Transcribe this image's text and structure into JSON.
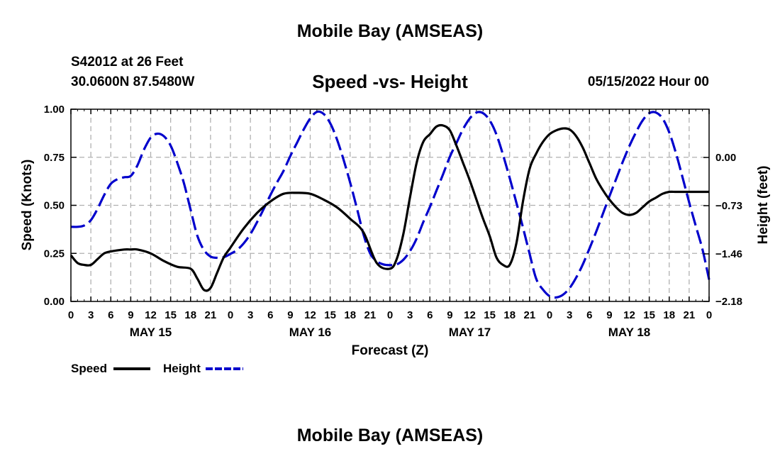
{
  "header": {
    "title": "Mobile Bay (AMSEAS)",
    "station": "S42012 at 26 Feet",
    "coords": "30.0600N  87.5480W",
    "forecast_start": "05/15/2022 Hour 00"
  },
  "footer": {
    "title": "Mobile Bay (AMSEAS)"
  },
  "legend": {
    "speed_label": "Speed",
    "height_label": "Height"
  },
  "colors": {
    "speed": "#000000",
    "height": "#0000cc",
    "grid": "#b0b0b0"
  },
  "chart_data": {
    "type": "line",
    "title": "Speed -vs- Height",
    "xlabel": "Forecast (Z)",
    "ylabel_left": "Speed (Knots)",
    "ylabel_right": "Height (feet)",
    "x_unit": "hours since 05/15/2022 00Z",
    "xlim": [
      0,
      96
    ],
    "ylim_left": [
      0,
      1
    ],
    "ylim_right": [
      -2.18,
      0.73
    ],
    "left_ticks": [
      {
        "value": 0,
        "label": "0.00"
      },
      {
        "value": 0.25,
        "label": "0.25"
      },
      {
        "value": 0.5,
        "label": "0.50"
      },
      {
        "value": 0.75,
        "label": "0.75"
      },
      {
        "value": 1,
        "label": "1.00"
      }
    ],
    "right_ticks": [
      {
        "value": -2.18,
        "label": "−2.18"
      },
      {
        "value": -1.46,
        "label": "−1.46"
      },
      {
        "value": -0.73,
        "label": "−0.73"
      },
      {
        "value": 0.0,
        "label": "0.00"
      }
    ],
    "hour_tick_labels": [
      "0",
      "3",
      "6",
      "9",
      "12",
      "15",
      "18",
      "21",
      "0",
      "3",
      "6",
      "9",
      "12",
      "15",
      "18",
      "21",
      "0",
      "3",
      "6",
      "9",
      "12",
      "15",
      "18",
      "21",
      "0",
      "3",
      "6",
      "9",
      "12",
      "15",
      "18",
      "21",
      "0"
    ],
    "day_labels": [
      {
        "hour": 12,
        "label": "MAY 15"
      },
      {
        "hour": 36,
        "label": "MAY 16"
      },
      {
        "hour": 60,
        "label": "MAY 17"
      },
      {
        "hour": 84,
        "label": "MAY 18"
      }
    ],
    "series": [
      {
        "name": "Speed",
        "axis": "left",
        "style": "solid",
        "x": [
          0,
          1,
          2,
          3,
          4,
          5,
          6,
          8,
          9,
          10,
          12,
          14,
          16,
          18,
          19,
          20,
          21,
          22,
          23,
          24,
          26,
          28,
          30,
          32,
          34,
          36,
          38,
          40,
          42,
          44,
          46,
          48,
          49,
          50,
          51,
          52,
          53,
          54,
          55,
          56,
          57,
          58,
          59,
          60,
          61,
          62,
          63,
          64,
          65,
          66,
          67,
          68,
          69,
          70,
          71,
          72,
          73,
          74,
          75,
          76,
          77,
          78,
          79,
          80,
          81,
          82,
          83,
          84,
          85,
          86,
          87,
          88,
          89,
          90,
          91,
          92,
          93,
          94,
          95,
          96
        ],
        "values": [
          0.24,
          0.2,
          0.19,
          0.19,
          0.22,
          0.25,
          0.26,
          0.27,
          0.27,
          0.27,
          0.25,
          0.21,
          0.18,
          0.17,
          0.12,
          0.06,
          0.07,
          0.15,
          0.23,
          0.28,
          0.38,
          0.46,
          0.52,
          0.56,
          0.565,
          0.56,
          0.53,
          0.49,
          0.43,
          0.36,
          0.2,
          0.17,
          0.22,
          0.35,
          0.54,
          0.72,
          0.83,
          0.87,
          0.91,
          0.915,
          0.89,
          0.81,
          0.72,
          0.63,
          0.53,
          0.43,
          0.34,
          0.23,
          0.19,
          0.19,
          0.3,
          0.52,
          0.69,
          0.77,
          0.83,
          0.87,
          0.89,
          0.9,
          0.895,
          0.86,
          0.8,
          0.72,
          0.64,
          0.58,
          0.53,
          0.49,
          0.46,
          0.45,
          0.46,
          0.49,
          0.52,
          0.54,
          0.56,
          0.57,
          0.57,
          0.57,
          0.57,
          0.57,
          0.57,
          0.57
        ]
      },
      {
        "name": "Height",
        "axis": "right",
        "style": "dashed",
        "x": [
          0,
          1,
          2,
          3,
          4,
          5,
          6,
          7,
          8,
          9,
          10,
          11,
          12,
          13,
          14,
          15,
          16,
          17,
          18,
          19,
          20,
          21,
          22,
          23,
          24,
          25,
          26,
          27,
          28,
          29,
          30,
          31,
          32,
          33,
          34,
          35,
          36,
          37,
          38,
          39,
          40,
          41,
          42,
          43,
          44,
          45,
          46,
          47,
          48,
          49,
          50,
          51,
          52,
          53,
          54,
          55,
          56,
          57,
          58,
          59,
          60,
          61,
          62,
          63,
          64,
          65,
          66,
          67,
          68,
          69,
          70,
          71,
          72,
          73,
          74,
          75,
          76,
          77,
          78,
          79,
          80,
          81,
          82,
          83,
          84,
          85,
          86,
          87,
          88,
          89,
          90,
          91,
          92,
          93,
          94,
          95,
          96
        ],
        "values": [
          -1.05,
          -1.05,
          -1.03,
          -0.95,
          -0.78,
          -0.57,
          -0.4,
          -0.33,
          -0.3,
          -0.28,
          -0.12,
          0.12,
          0.3,
          0.36,
          0.32,
          0.18,
          -0.08,
          -0.39,
          -0.79,
          -1.18,
          -1.4,
          -1.5,
          -1.52,
          -1.51,
          -1.46,
          -1.4,
          -1.3,
          -1.16,
          -0.98,
          -0.78,
          -0.57,
          -0.38,
          -0.2,
          0.02,
          0.22,
          0.42,
          0.59,
          0.69,
          0.66,
          0.52,
          0.28,
          -0.03,
          -0.38,
          -0.76,
          -1.16,
          -1.45,
          -1.57,
          -1.62,
          -1.63,
          -1.62,
          -1.55,
          -1.42,
          -1.23,
          -0.98,
          -0.75,
          -0.5,
          -0.25,
          0.01,
          0.22,
          0.43,
          0.59,
          0.68,
          0.67,
          0.56,
          0.35,
          0.04,
          -0.31,
          -0.68,
          -1.06,
          -1.46,
          -1.84,
          -2.0,
          -2.1,
          -2.12,
          -2.08,
          -1.98,
          -1.82,
          -1.62,
          -1.38,
          -1.13,
          -0.86,
          -0.59,
          -0.33,
          -0.07,
          0.17,
          0.38,
          0.56,
          0.67,
          0.68,
          0.59,
          0.38,
          0.07,
          -0.3,
          -0.68,
          -1.04,
          -1.39,
          -1.85
        ]
      }
    ]
  }
}
